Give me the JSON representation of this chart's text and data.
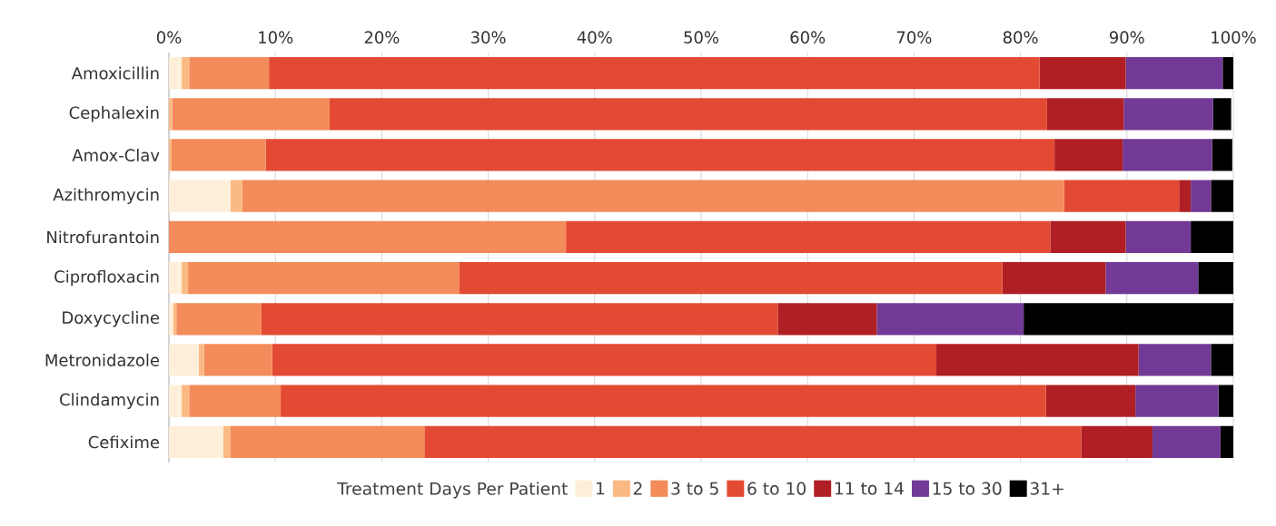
{
  "chart_data": {
    "type": "bar",
    "orientation": "horizontal",
    "stacked": true,
    "categories": [
      "Amoxicillin",
      "Cephalexin",
      "Amox-Clav",
      "Azithromycin",
      "Nitrofurantoin",
      "Ciprofloxacin",
      "Doxycycline",
      "Metronidazole",
      "Clindamycin",
      "Cefixime"
    ],
    "series": [
      {
        "name": "1",
        "color": "#fdefd9",
        "values": [
          1.2,
          null,
          null,
          5.8,
          0,
          1.2,
          0.4,
          2.8,
          1.2,
          5.1
        ]
      },
      {
        "name": "2",
        "color": "#fbb983",
        "values": [
          0.7,
          0.3,
          0.2,
          1.1,
          0,
          0.6,
          0.3,
          0.5,
          0.7,
          0.7
        ]
      },
      {
        "name": "3 to 5",
        "color": "#f38b5a",
        "values": [
          7.5,
          14.8,
          8.9,
          77.2,
          37.3,
          25.5,
          8.0,
          6.4,
          8.6,
          18.2
        ]
      },
      {
        "name": "6 to 10",
        "color": "#e34a33",
        "values": [
          72.4,
          67.4,
          74.1,
          10.8,
          45.5,
          51.0,
          48.5,
          62.4,
          71.9,
          61.7
        ]
      },
      {
        "name": "11 to 14",
        "color": "#b01f24",
        "values": [
          8.1,
          7.2,
          6.4,
          1.1,
          7.1,
          9.7,
          9.3,
          19.0,
          8.4,
          6.7
        ]
      },
      {
        "name": "15 to 30",
        "color": "#723a96",
        "values": [
          9.1,
          8.4,
          8.4,
          1.9,
          6.1,
          8.7,
          13.8,
          6.8,
          7.8,
          6.4
        ]
      },
      {
        "name": "31+",
        "color": "#000000",
        "values": [
          1.0,
          1.7,
          1.9,
          2.1,
          4.0,
          3.3,
          19.7,
          2.1,
          1.4,
          1.2
        ]
      }
    ],
    "xlim": [
      0,
      100
    ],
    "xticks": [
      {
        "value": 0,
        "label": "0%"
      },
      {
        "value": 10,
        "label": "10%"
      },
      {
        "value": 20,
        "label": "20%"
      },
      {
        "value": 30,
        "label": "30%"
      },
      {
        "value": 40,
        "label": "40%"
      },
      {
        "value": 50,
        "label": "50%"
      },
      {
        "value": 60,
        "label": "60%"
      },
      {
        "value": 70,
        "label": "70%"
      },
      {
        "value": 80,
        "label": "80%"
      },
      {
        "value": 90,
        "label": "90%"
      },
      {
        "value": 100,
        "label": "100%"
      }
    ],
    "grid": "x",
    "legend": "bottom",
    "legend_title": "Treatment Days Per Patient"
  }
}
